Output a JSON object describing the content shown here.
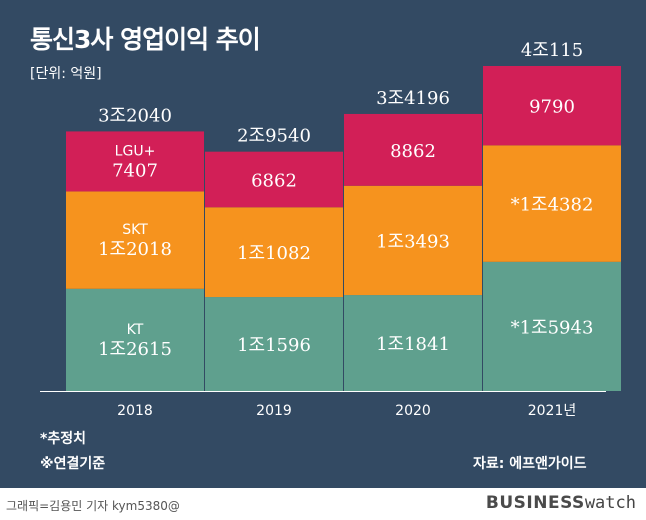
{
  "title": "통신3사 영업이익 추이",
  "unit": "[단위: 억원]",
  "notes": {
    "estimate": "*추정치",
    "consolidated": "※연결기준",
    "source": "자료: 에프앤가이드"
  },
  "footer": {
    "credit": "그래픽=김용민 기자 kym5380@",
    "logo_bold": "BUSINESS",
    "logo_light": "watch"
  },
  "colors": {
    "KT": "#5fa08e",
    "SKT": "#f6931e",
    "LGU+": "#d21f57",
    "background": "#334a63"
  },
  "chart_data": {
    "type": "bar",
    "stacked": true,
    "categories": [
      "2018",
      "2019",
      "2020",
      "2021년"
    ],
    "totals": [
      32040,
      29540,
      34196,
      40115
    ],
    "total_labels": [
      "3조2040",
      "2조9540",
      "3조4196",
      "4조115"
    ],
    "series": [
      {
        "name": "KT",
        "values": [
          12615,
          11596,
          11841,
          15943
        ],
        "labels": [
          "1조2615",
          "1조1596",
          "1조1841",
          "*1조5943"
        ]
      },
      {
        "name": "SKT",
        "values": [
          12018,
          11082,
          13493,
          14382
        ],
        "labels": [
          "1조2018",
          "1조1082",
          "1조3493",
          "*1조4382"
        ]
      },
      {
        "name": "LGU+",
        "values": [
          7407,
          6862,
          8862,
          9790
        ],
        "labels": [
          "7407",
          "6862",
          "8862",
          "9790"
        ]
      }
    ],
    "ylim": [
      0,
      40115
    ]
  }
}
